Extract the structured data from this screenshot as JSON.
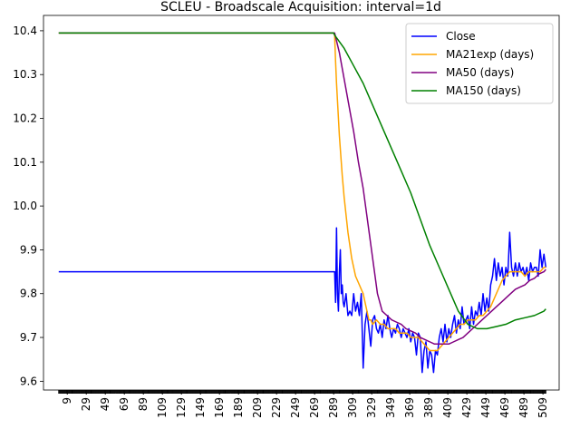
{
  "chart_data": {
    "type": "line",
    "title": "SCLEU - Broadscale Acquisition: interval=1d",
    "xlabel": "",
    "ylabel": "",
    "xlim": [
      -16,
      526
    ],
    "ylim": [
      9.58,
      10.435
    ],
    "x_ticks": [
      9,
      29,
      49,
      69,
      89,
      109,
      129,
      149,
      169,
      189,
      209,
      229,
      249,
      269,
      289,
      309,
      329,
      349,
      369,
      389,
      409,
      429,
      449,
      469,
      489,
      509
    ],
    "y_ticks": [
      9.6,
      9.7,
      9.8,
      9.9,
      10.0,
      10.1,
      10.2,
      10.3,
      10.4
    ],
    "y_tick_labels": [
      "9.6",
      "9.7",
      "9.8",
      "9.9",
      "10.0",
      "10.1",
      "10.2",
      "10.3",
      "10.4"
    ],
    "grid": false,
    "legend_position": "top-right",
    "series": [
      {
        "name": "Close",
        "color": "#0000ff",
        "x": [
          0,
          290,
          291,
          292,
          293,
          294,
          295,
          296,
          297,
          298,
          299,
          300,
          302,
          304,
          306,
          308,
          310,
          312,
          314,
          316,
          318,
          320,
          322,
          324,
          326,
          328,
          330,
          332,
          334,
          336,
          338,
          340,
          342,
          344,
          346,
          348,
          350,
          352,
          354,
          356,
          358,
          360,
          362,
          364,
          366,
          368,
          370,
          372,
          374,
          376,
          378,
          380,
          382,
          384,
          386,
          388,
          390,
          392,
          394,
          396,
          398,
          400,
          402,
          404,
          406,
          408,
          410,
          412,
          414,
          416,
          418,
          420,
          422,
          424,
          426,
          428,
          430,
          432,
          434,
          436,
          438,
          440,
          442,
          444,
          446,
          448,
          450,
          452,
          454,
          456,
          458,
          460,
          462,
          464,
          466,
          468,
          470,
          472,
          474,
          476,
          478,
          480,
          482,
          484,
          486,
          488,
          490,
          492,
          494,
          496,
          498,
          500,
          502,
          504,
          506,
          508,
          510,
          512
        ],
        "y": [
          9.85,
          9.85,
          9.78,
          9.95,
          9.8,
          9.76,
          9.85,
          9.9,
          9.8,
          9.82,
          9.78,
          9.77,
          9.8,
          9.75,
          9.76,
          9.75,
          9.8,
          9.76,
          9.78,
          9.75,
          9.8,
          9.63,
          9.73,
          9.76,
          9.72,
          9.68,
          9.74,
          9.75,
          9.72,
          9.71,
          9.73,
          9.7,
          9.74,
          9.72,
          9.75,
          9.72,
          9.7,
          9.72,
          9.71,
          9.73,
          9.72,
          9.7,
          9.72,
          9.71,
          9.7,
          9.72,
          9.69,
          9.71,
          9.7,
          9.66,
          9.71,
          9.7,
          9.62,
          9.67,
          9.69,
          9.63,
          9.67,
          9.66,
          9.62,
          9.67,
          9.66,
          9.7,
          9.72,
          9.69,
          9.73,
          9.69,
          9.72,
          9.7,
          9.73,
          9.75,
          9.71,
          9.74,
          9.72,
          9.77,
          9.73,
          9.74,
          9.75,
          9.72,
          9.77,
          9.73,
          9.76,
          9.75,
          9.78,
          9.75,
          9.8,
          9.76,
          9.79,
          9.76,
          9.82,
          9.84,
          9.88,
          9.83,
          9.87,
          9.84,
          9.86,
          9.82,
          9.86,
          9.84,
          9.94,
          9.86,
          9.84,
          9.87,
          9.84,
          9.87,
          9.85,
          9.86,
          9.84,
          9.86,
          9.83,
          9.87,
          9.85,
          9.86,
          9.86,
          9.84,
          9.9,
          9.86,
          9.89,
          9.86
        ]
      },
      {
        "name": "MA21exp (days)",
        "color": "#ffa500",
        "x": [
          0,
          21,
          49,
          289,
          290,
          291,
          292,
          293,
          294,
          295,
          296,
          297,
          298,
          300,
          302,
          304,
          306,
          308,
          310,
          312,
          314,
          316,
          318,
          320,
          322,
          324,
          326,
          328,
          330,
          334,
          338,
          342,
          346,
          350,
          354,
          358,
          362,
          366,
          370,
          374,
          378,
          382,
          386,
          390,
          394,
          398,
          402,
          406,
          410,
          414,
          418,
          422,
          426,
          430,
          434,
          438,
          442,
          446,
          450,
          454,
          458,
          462,
          466,
          470,
          474,
          478,
          482,
          486,
          490,
          494,
          498,
          502,
          506,
          510,
          512
        ],
        "y": [
          10.395,
          10.395,
          10.395,
          10.395,
          10.39,
          10.33,
          10.28,
          10.24,
          10.2,
          10.16,
          10.13,
          10.1,
          10.07,
          10.02,
          9.98,
          9.94,
          9.91,
          9.88,
          9.86,
          9.84,
          9.83,
          9.82,
          9.81,
          9.8,
          9.78,
          9.76,
          9.74,
          9.74,
          9.73,
          9.74,
          9.73,
          9.73,
          9.72,
          9.72,
          9.72,
          9.71,
          9.71,
          9.71,
          9.7,
          9.7,
          9.7,
          9.69,
          9.68,
          9.67,
          9.67,
          9.67,
          9.68,
          9.69,
          9.7,
          9.71,
          9.72,
          9.73,
          9.73,
          9.74,
          9.74,
          9.74,
          9.75,
          9.75,
          9.76,
          9.77,
          9.79,
          9.81,
          9.83,
          9.84,
          9.85,
          9.85,
          9.85,
          9.85,
          9.84,
          9.85,
          9.85,
          9.85,
          9.85,
          9.86,
          9.86
        ]
      },
      {
        "name": "MA50 (days)",
        "color": "#800080",
        "x": [
          0,
          49,
          289,
          290,
          295,
          300,
          305,
          310,
          315,
          320,
          325,
          330,
          335,
          340,
          345,
          350,
          355,
          360,
          365,
          370,
          375,
          380,
          385,
          390,
          395,
          400,
          405,
          410,
          415,
          420,
          425,
          430,
          435,
          440,
          445,
          450,
          455,
          460,
          465,
          470,
          475,
          480,
          485,
          490,
          495,
          500,
          505,
          510,
          512
        ],
        "y": [
          10.395,
          10.395,
          10.395,
          10.395,
          10.35,
          10.29,
          10.23,
          10.17,
          10.1,
          10.04,
          9.96,
          9.88,
          9.8,
          9.76,
          9.75,
          9.74,
          9.735,
          9.73,
          9.72,
          9.715,
          9.71,
          9.7,
          9.695,
          9.69,
          9.685,
          9.685,
          9.685,
          9.685,
          9.69,
          9.695,
          9.7,
          9.71,
          9.72,
          9.73,
          9.74,
          9.75,
          9.76,
          9.77,
          9.78,
          9.79,
          9.8,
          9.81,
          9.815,
          9.82,
          9.83,
          9.835,
          9.845,
          9.85,
          9.855
        ]
      },
      {
        "name": "MA150 (days)",
        "color": "#008000",
        "x": [
          0,
          149,
          289,
          290,
          300,
          310,
          320,
          330,
          340,
          350,
          360,
          370,
          380,
          390,
          400,
          410,
          420,
          430,
          440,
          450,
          460,
          470,
          480,
          490,
          500,
          510,
          512
        ],
        "y": [
          10.395,
          10.395,
          10.395,
          10.39,
          10.36,
          10.32,
          10.28,
          10.23,
          10.18,
          10.13,
          10.08,
          10.03,
          9.97,
          9.91,
          9.86,
          9.81,
          9.76,
          9.73,
          9.72,
          9.72,
          9.725,
          9.73,
          9.74,
          9.745,
          9.75,
          9.76,
          9.765
        ]
      }
    ],
    "legend": [
      {
        "label": "Close",
        "color": "#0000ff"
      },
      {
        "label": "MA21exp (days)",
        "color": "#ffa500"
      },
      {
        "label": "MA50 (days)",
        "color": "#800080"
      },
      {
        "label": "MA150 (days)",
        "color": "#008000"
      }
    ]
  }
}
